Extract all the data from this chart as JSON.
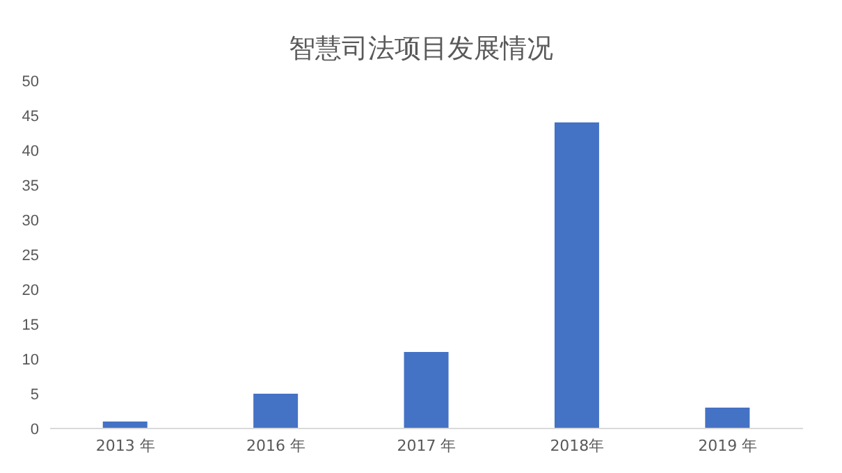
{
  "chart_data": {
    "type": "bar",
    "title": "智慧司法项目发展情况",
    "categories": [
      "2013 年",
      "2016 年",
      "2017 年",
      "2018年",
      "2019 年"
    ],
    "values": [
      1,
      5,
      11,
      44,
      3
    ],
    "color": "#4472c4",
    "ylim": [
      0,
      50
    ],
    "yticks": [
      0,
      5,
      10,
      15,
      20,
      25,
      30,
      35,
      40,
      45,
      50
    ],
    "grid": false
  }
}
